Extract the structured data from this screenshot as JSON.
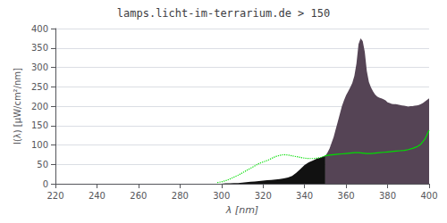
{
  "chart_data": {
    "type": "line",
    "title": "lamps.licht-im-terrarium.de > 150",
    "xlabel": "λ [nm]",
    "ylabel": "I(λ) [µW/cm²/nm]",
    "xlim": [
      220,
      400
    ],
    "ylim": [
      0,
      400
    ],
    "xticks": [
      220,
      240,
      260,
      280,
      300,
      320,
      340,
      360,
      380,
      400
    ],
    "yticks": [
      0,
      50,
      100,
      150,
      200,
      250,
      300,
      350,
      400
    ],
    "grid": true,
    "series": [
      {
        "type": "area",
        "color": "#111111",
        "x": [
          298,
          300,
          302,
          304,
          306,
          308,
          310,
          312,
          314,
          316,
          318,
          320,
          322,
          324,
          326,
          328,
          330,
          332,
          334,
          336,
          338,
          340,
          342,
          344,
          346,
          348,
          350
        ],
        "values": [
          0,
          0,
          1,
          1,
          2,
          2,
          3,
          4,
          5,
          6,
          7,
          8,
          9,
          10,
          11,
          12,
          14,
          16,
          20,
          28,
          38,
          48,
          55,
          60,
          65,
          68,
          72
        ]
      },
      {
        "type": "area",
        "color": "#554455",
        "x": [
          350,
          351,
          352,
          353,
          354,
          355,
          356,
          357,
          358,
          359,
          360,
          361,
          362,
          363,
          364,
          365,
          366,
          367,
          368,
          369,
          370,
          371,
          372,
          373,
          374,
          375,
          376,
          377,
          378,
          379,
          380,
          381,
          382,
          383,
          384,
          385,
          386,
          387,
          388,
          389,
          390,
          391,
          392,
          393,
          394,
          395,
          396,
          397,
          398,
          399,
          400
        ],
        "values": [
          72,
          80,
          90,
          105,
          120,
          140,
          160,
          180,
          200,
          215,
          228,
          238,
          248,
          260,
          278,
          310,
          360,
          375,
          368,
          340,
          290,
          262,
          248,
          238,
          230,
          225,
          222,
          220,
          218,
          215,
          210,
          208,
          206,
          205,
          205,
          204,
          203,
          202,
          201,
          200,
          199,
          200,
          200,
          201,
          202,
          203,
          205,
          208,
          212,
          216,
          220
        ]
      },
      {
        "type": "line",
        "color": "#00dd00",
        "line_style": "dotted",
        "x": [
          298,
          300,
          302,
          304,
          306,
          308,
          310,
          312,
          314,
          316,
          318,
          320,
          322,
          324,
          326,
          328,
          330,
          332,
          334,
          336,
          338,
          340,
          342,
          344,
          346,
          348,
          350
        ],
        "values": [
          3,
          5,
          8,
          12,
          17,
          22,
          28,
          34,
          40,
          46,
          52,
          56,
          60,
          65,
          70,
          73,
          75,
          74,
          72,
          70,
          68,
          66,
          65,
          65,
          66,
          68,
          72
        ]
      },
      {
        "type": "line",
        "color": "#00dd00",
        "line_style": "solid",
        "x": [
          350,
          352,
          354,
          356,
          358,
          360,
          362,
          364,
          366,
          368,
          370,
          372,
          374,
          376,
          378,
          380,
          382,
          384,
          386,
          388,
          390,
          392,
          394,
          396,
          398,
          400
        ],
        "values": [
          72,
          74,
          75,
          76,
          77,
          78,
          79,
          80,
          80,
          79,
          78,
          78,
          79,
          80,
          81,
          82,
          83,
          84,
          85,
          86,
          88,
          91,
          95,
          102,
          115,
          138
        ]
      }
    ]
  }
}
